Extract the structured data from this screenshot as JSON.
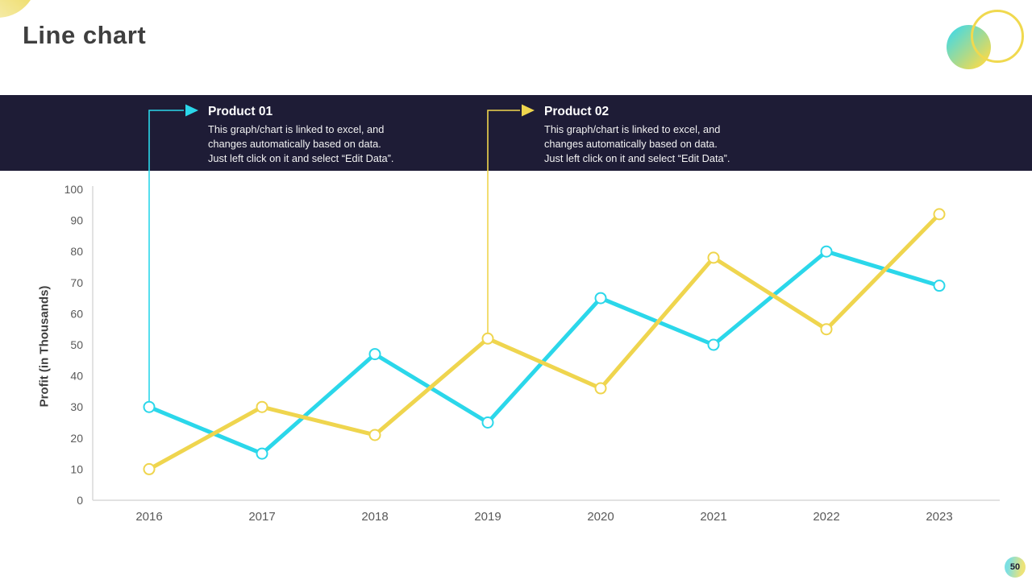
{
  "slide": {
    "title": "Line chart",
    "page_number": "50",
    "background": "#FFFFFF"
  },
  "banner": {
    "background": "#1E1C36"
  },
  "callouts": [
    {
      "title": "Product 01",
      "lines": [
        "This graph/chart is linked to excel, and",
        "changes automatically based on data.",
        "Just left click on it and select “Edit Data”."
      ],
      "color": "#2BD7EA",
      "anchor_series": "Product 01",
      "anchor_x": "2016"
    },
    {
      "title": "Product 02",
      "lines": [
        "This graph/chart is linked to excel, and",
        "changes automatically based on data.",
        "Just left click on it and select “Edit Data”."
      ],
      "color": "#EFD54E",
      "anchor_series": "Product 02",
      "anchor_x": "2019"
    }
  ],
  "chart_data": {
    "type": "line",
    "x": [
      "2016",
      "2017",
      "2018",
      "2019",
      "2020",
      "2021",
      "2022",
      "2023"
    ],
    "series": [
      {
        "name": "Product 01",
        "color": "#2BD7EA",
        "values": [
          30,
          15,
          47,
          25,
          65,
          50,
          80,
          69
        ]
      },
      {
        "name": "Product 02",
        "color": "#EFD54E",
        "values": [
          10,
          30,
          21,
          52,
          36,
          78,
          55,
          92
        ]
      }
    ],
    "xlabel": "",
    "ylabel": "Profit (in Thousands)",
    "ylim": [
      0,
      100
    ],
    "yticks": [
      0,
      10,
      20,
      30,
      40,
      50,
      60,
      70,
      80,
      90,
      100
    ],
    "grid": false,
    "legend_position": "none",
    "marker": "open-circle",
    "axis_color": "#D9D9D9",
    "tick_label_color": "#595959"
  },
  "decorations": {
    "top_left_blob_colors": [
      "#ECD64E",
      "#F8F2C6"
    ],
    "top_right_circle_colors": [
      "#46D9E2",
      "#EFDB52"
    ],
    "top_right_ring_color": "#F0D94F",
    "page_badge_colors": [
      "#7CDFE2",
      "#ECE379"
    ]
  }
}
